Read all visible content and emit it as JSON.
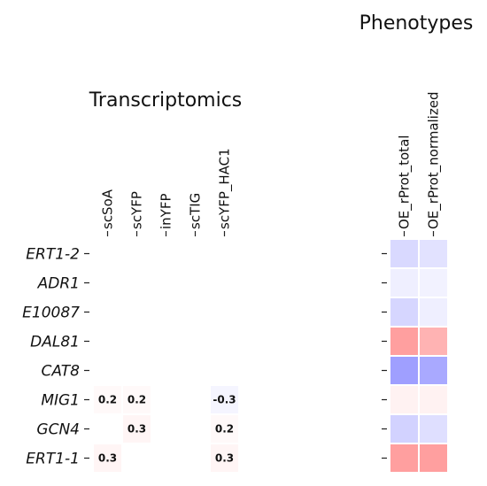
{
  "chart_data": {
    "type": "heatmap",
    "rows": [
      "ERT1-2",
      "ADR1",
      "E10087",
      "DAL81",
      "CAT8",
      "MIG1",
      "GCN4",
      "ERT1-1"
    ],
    "panels": [
      {
        "title": "Transcriptomics",
        "columns": [
          "scSoA",
          "scYFP",
          "inYFP",
          "scTIG",
          "scYFP_HAC1"
        ],
        "values": [
          [
            0,
            0,
            0,
            0,
            0
          ],
          [
            0,
            0,
            0,
            0,
            0
          ],
          [
            0,
            0,
            0,
            0,
            0
          ],
          [
            0,
            0,
            0,
            0,
            0
          ],
          [
            0,
            0,
            0,
            0,
            0
          ],
          [
            0.2,
            0.2,
            0,
            0,
            -0.3
          ],
          [
            0,
            0.3,
            0,
            0,
            0.2
          ],
          [
            0.3,
            0,
            0,
            0,
            0.3
          ]
        ],
        "annotations": [
          [
            "",
            "",
            "",
            "",
            ""
          ],
          [
            "",
            "",
            "",
            "",
            ""
          ],
          [
            "",
            "",
            "",
            "",
            ""
          ],
          [
            "",
            "",
            "",
            "",
            ""
          ],
          [
            "",
            "",
            "",
            "",
            ""
          ],
          [
            "0.2",
            "0.2",
            "",
            "",
            "-0.3"
          ],
          [
            "",
            "0.3",
            "",
            "",
            "0.2"
          ],
          [
            "0.3",
            "",
            "",
            "",
            "0.3"
          ]
        ]
      },
      {
        "title": "Phenotypes",
        "columns": [
          "OE_rProt_total",
          "OE_rProt_normalized"
        ],
        "values": [
          [
            -1.2,
            -0.9
          ],
          [
            -0.5,
            -0.4
          ],
          [
            -1.3,
            -0.5
          ],
          [
            3.0,
            2.4
          ],
          [
            -3.0,
            -2.7
          ],
          [
            0.4,
            0.4
          ],
          [
            -1.4,
            -1.0
          ],
          [
            3.0,
            3.0
          ]
        ],
        "annotations": [
          [
            "",
            ""
          ],
          [
            "",
            ""
          ],
          [
            "",
            ""
          ],
          [
            "",
            ""
          ],
          [
            "",
            ""
          ],
          [
            "",
            ""
          ],
          [
            "",
            ""
          ],
          [
            "",
            ""
          ]
        ]
      }
    ],
    "colormap": "bwr",
    "color_range": [
      -8,
      8
    ],
    "colors": {
      "positive": "#ff0000",
      "negative": "#0000ff",
      "neutral": "#ffffff"
    }
  }
}
